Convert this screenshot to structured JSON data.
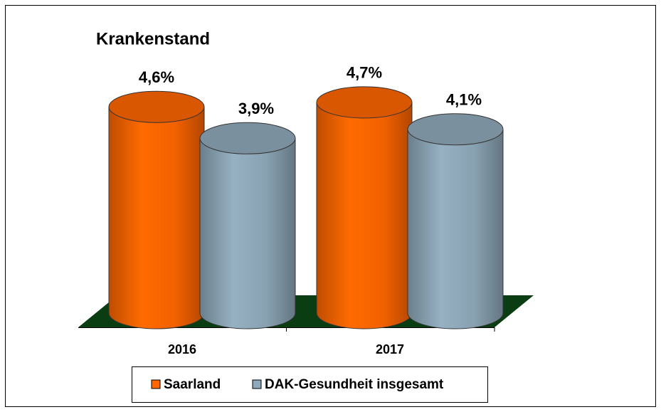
{
  "chart_data": {
    "type": "cylinder",
    "title": "Krankenstand",
    "categories": [
      "2016",
      "2017"
    ],
    "series": [
      {
        "name": "Saarland",
        "color": "#ff6600",
        "values": [
          4.6,
          4.7
        ],
        "value_labels": [
          "4,6%",
          "4,7%"
        ]
      },
      {
        "name": "DAK-Gesundheit insgesamt",
        "color": "#8fa9ba",
        "values": [
          3.9,
          4.1
        ],
        "value_labels": [
          "3,9%",
          "4,1%"
        ]
      }
    ],
    "floor_color": "#0b3d12"
  }
}
